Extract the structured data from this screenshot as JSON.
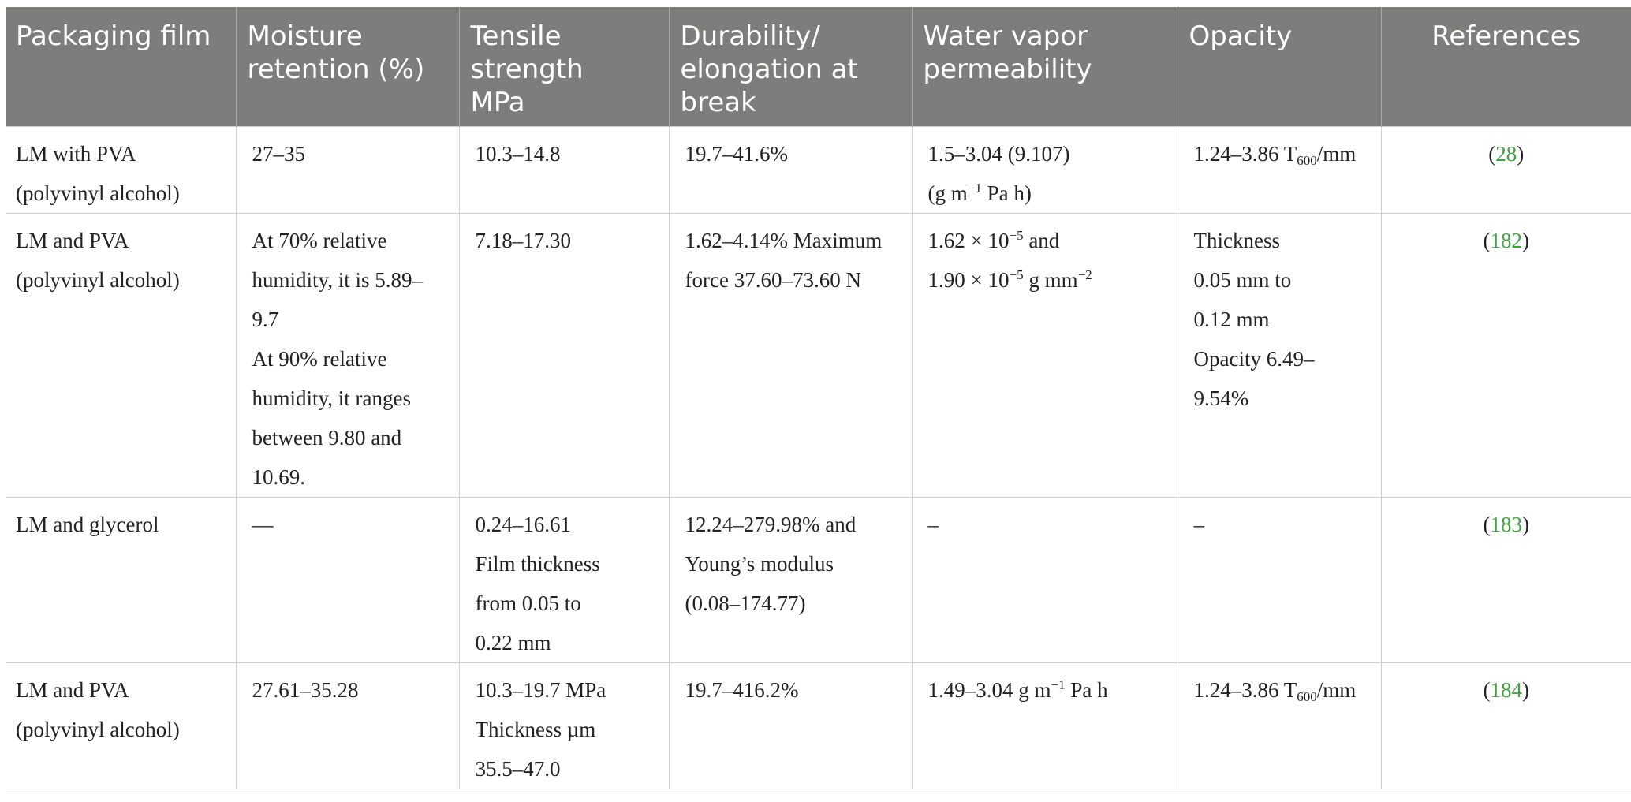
{
  "headers": [
    [
      "Packaging film"
    ],
    [
      "Moisture",
      "retention (%)"
    ],
    [
      "Tensile",
      "strength",
      "MPa"
    ],
    [
      "Durability/",
      "elongation at",
      "break"
    ],
    [
      "Water vapor",
      "permeability"
    ],
    [
      "Opacity"
    ],
    [
      "References"
    ]
  ],
  "rows": [
    {
      "film": [
        "LM with PVA",
        "(polyvinyl alcohol)"
      ],
      "moisture": [
        "27–35"
      ],
      "tensile": [
        "10.3–14.8"
      ],
      "durability": [
        "19.7–41.6%"
      ],
      "wvp": {
        "l1": "1.5–3.04 (9.107)",
        "l2_a": "(g m",
        "l2_sup1": "−1",
        "l2_b": " Pa h)"
      },
      "opacity": {
        "a": "1.24–3.86 T",
        "sub": "600",
        "b": "/mm"
      },
      "ref": {
        "open": "(",
        "num": "28",
        "close": ")"
      }
    },
    {
      "film": [
        "LM and PVA",
        "(polyvinyl alcohol)"
      ],
      "moisture": [
        "At 70% relative",
        "humidity, it is 5.89–",
        "9.7",
        "At 90% relative",
        "humidity, it ranges",
        "between 9.80 and",
        "10.69."
      ],
      "tensile": [
        "7.18–17.30"
      ],
      "durability": [
        "1.62–4.14% Maximum",
        "force 37.60–73.60 N"
      ],
      "wvp": {
        "l1_a": "1.62 × 10",
        "l1_sup": "−5",
        "l1_b": " and",
        "l2_a": "1.90 × 10",
        "l2_sup1": "−5",
        "l2_b": " g mm",
        "l2_sup2": "−2"
      },
      "opacity": [
        "Thickness",
        "0.05 mm to",
        "0.12 mm",
        "Opacity 6.49–",
        "9.54%"
      ],
      "ref": {
        "open": "(",
        "num": "182",
        "close": ")"
      }
    },
    {
      "film": [
        "LM and glycerol"
      ],
      "moisture": [
        "—"
      ],
      "tensile": [
        "0.24–16.61",
        "Film thickness",
        "from 0.05 to",
        "0.22 mm"
      ],
      "durability": [
        "12.24–279.98% and",
        "Young’s modulus",
        "(0.08–174.77)"
      ],
      "wvp": [
        "–"
      ],
      "opacity": [
        "–"
      ],
      "ref": {
        "open": "(",
        "num": "183",
        "close": ")"
      }
    },
    {
      "film": [
        "LM and PVA",
        "(polyvinyl alcohol)"
      ],
      "moisture": [
        "27.61–35.28"
      ],
      "tensile": [
        "10.3–19.7 MPa",
        "Thickness µm",
        "35.5–47.0"
      ],
      "durability": [
        "19.7–416.2%"
      ],
      "wvp": {
        "l1_a": "1.49–3.04 g m",
        "l1_sup": "−1",
        "l1_b": " Pa h"
      },
      "opacity": {
        "a": "1.24–3.86 T",
        "sub": "600",
        "b": "/mm"
      },
      "ref": {
        "open": "(",
        "num": "184",
        "close": ")"
      }
    }
  ],
  "colors": {
    "header_bg": "#7d7e7c",
    "header_text": "#ffffff",
    "link": "#3fa43f",
    "grid": "#cfcfcf"
  }
}
